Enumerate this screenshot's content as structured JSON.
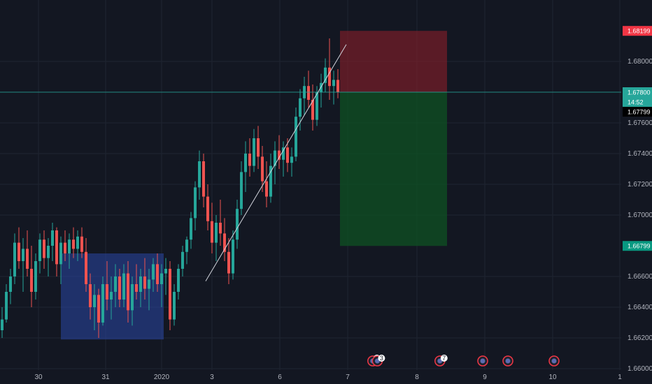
{
  "chart_data": {
    "type": "candlestick",
    "instrument_interval": "",
    "y_axis": {
      "ticks": [
        "1.68000",
        "1.67600",
        "1.67400",
        "1.67200",
        "1.67000",
        "1.66600",
        "1.66400",
        "1.66200",
        "1.66000"
      ],
      "ylim": [
        1.6596,
        1.6836
      ]
    },
    "x_axis": {
      "ticks": [
        "30",
        "31",
        "2020",
        "3",
        "6",
        "7",
        "8",
        "9",
        "10",
        "1"
      ]
    },
    "price_labels": {
      "stop": {
        "text": "1.68199",
        "value": 1.68199,
        "color": "#f23645"
      },
      "entry": {
        "text": "1.67800",
        "value": 1.678,
        "color": "#26a69a"
      },
      "countdown": {
        "text": "14:52",
        "color": "#26a69a"
      },
      "last": {
        "text": "1.67799",
        "value": 1.67799,
        "color": "#000000"
      },
      "target": {
        "text": "1.66799",
        "value": 1.66799,
        "color": "#089981"
      }
    },
    "colors": {
      "up": "#26a69a",
      "down": "#ef5350",
      "grid": "#1f2431",
      "axis_text": "#b2b5be",
      "zone_box": "#2947a5",
      "risk": "#8b1e2a",
      "reward": "#0f5223",
      "trendline": "#d1d4dc"
    },
    "candles": [
      [
        1.6625,
        1.664,
        1.662,
        1.6632
      ],
      [
        1.6632,
        1.6655,
        1.663,
        1.665
      ],
      [
        1.665,
        1.6665,
        1.6642,
        1.666
      ],
      [
        1.666,
        1.6688,
        1.6655,
        1.6682
      ],
      [
        1.6682,
        1.6692,
        1.6665,
        1.667
      ],
      [
        1.667,
        1.6685,
        1.665,
        1.6678
      ],
      [
        1.6678,
        1.669,
        1.666,
        1.6665
      ],
      [
        1.6665,
        1.668,
        1.664,
        1.665
      ],
      [
        1.665,
        1.6675,
        1.6645,
        1.667
      ],
      [
        1.667,
        1.6688,
        1.6662,
        1.6684
      ],
      [
        1.6684,
        1.669,
        1.6665,
        1.6672
      ],
      [
        1.6672,
        1.6685,
        1.666,
        1.668
      ],
      [
        1.668,
        1.6695,
        1.667,
        1.669
      ],
      [
        1.669,
        1.6692,
        1.666,
        1.6668
      ],
      [
        1.6668,
        1.6686,
        1.6655,
        1.6682
      ],
      [
        1.6682,
        1.669,
        1.667,
        1.6675
      ],
      [
        1.6675,
        1.6688,
        1.6665,
        1.6684
      ],
      [
        1.6684,
        1.6692,
        1.6672,
        1.6678
      ],
      [
        1.6678,
        1.669,
        1.667,
        1.6686
      ],
      [
        1.6686,
        1.6692,
        1.6672,
        1.6676
      ],
      [
        1.6676,
        1.6685,
        1.665,
        1.6655
      ],
      [
        1.6655,
        1.6662,
        1.6632,
        1.664
      ],
      [
        1.664,
        1.6655,
        1.6625,
        1.6648
      ],
      [
        1.6648,
        1.6652,
        1.662,
        1.663
      ],
      [
        1.663,
        1.666,
        1.6628,
        1.6655
      ],
      [
        1.6655,
        1.667,
        1.6638,
        1.6645
      ],
      [
        1.6645,
        1.666,
        1.6632,
        1.665
      ],
      [
        1.665,
        1.6668,
        1.664,
        1.666
      ],
      [
        1.666,
        1.6665,
        1.664,
        1.6645
      ],
      [
        1.6645,
        1.6668,
        1.664,
        1.6662
      ],
      [
        1.6662,
        1.667,
        1.663,
        1.6638
      ],
      [
        1.6638,
        1.666,
        1.6628,
        1.6655
      ],
      [
        1.6655,
        1.6668,
        1.6645,
        1.665
      ],
      [
        1.665,
        1.6665,
        1.664,
        1.666
      ],
      [
        1.666,
        1.6672,
        1.6645,
        1.6652
      ],
      [
        1.6652,
        1.6665,
        1.6638,
        1.6658
      ],
      [
        1.6658,
        1.6672,
        1.665,
        1.6668
      ],
      [
        1.6668,
        1.6675,
        1.665,
        1.6655
      ],
      [
        1.6655,
        1.6668,
        1.664,
        1.6662
      ],
      [
        1.6662,
        1.6672,
        1.6648,
        1.6665
      ],
      [
        1.6665,
        1.667,
        1.6625,
        1.6632
      ],
      [
        1.6632,
        1.6655,
        1.6628,
        1.665
      ],
      [
        1.665,
        1.6668,
        1.6645,
        1.6665
      ],
      [
        1.6665,
        1.668,
        1.666,
        1.6676
      ],
      [
        1.6676,
        1.6686,
        1.6668,
        1.6684
      ],
      [
        1.6684,
        1.6702,
        1.6678,
        1.6698
      ],
      [
        1.6698,
        1.6722,
        1.669,
        1.6718
      ],
      [
        1.6718,
        1.6742,
        1.671,
        1.6735
      ],
      [
        1.6735,
        1.674,
        1.6705,
        1.6712
      ],
      [
        1.6712,
        1.672,
        1.669,
        1.6696
      ],
      [
        1.6696,
        1.6708,
        1.6675,
        1.6682
      ],
      [
        1.6682,
        1.67,
        1.667,
        1.6695
      ],
      [
        1.6695,
        1.671,
        1.668,
        1.6688
      ],
      [
        1.6688,
        1.6698,
        1.667,
        1.6676
      ],
      [
        1.6676,
        1.6685,
        1.6655,
        1.6662
      ],
      [
        1.6662,
        1.669,
        1.6658,
        1.6684
      ],
      [
        1.6684,
        1.671,
        1.6678,
        1.6704
      ],
      [
        1.6704,
        1.6735,
        1.67,
        1.6728
      ],
      [
        1.6728,
        1.6748,
        1.6715,
        1.674
      ],
      [
        1.674,
        1.675,
        1.6725,
        1.6732
      ],
      [
        1.6732,
        1.6756,
        1.6728,
        1.675
      ],
      [
        1.675,
        1.6758,
        1.673,
        1.6738
      ],
      [
        1.6738,
        1.6745,
        1.6715,
        1.6722
      ],
      [
        1.6722,
        1.6735,
        1.6705,
        1.6712
      ],
      [
        1.6712,
        1.674,
        1.6708,
        1.6732
      ],
      [
        1.6732,
        1.6748,
        1.672,
        1.6742
      ],
      [
        1.6742,
        1.6752,
        1.673,
        1.6736
      ],
      [
        1.6736,
        1.6748,
        1.6725,
        1.6744
      ],
      [
        1.6744,
        1.675,
        1.6728,
        1.6734
      ],
      [
        1.6734,
        1.6744,
        1.6725,
        1.6738
      ],
      [
        1.6738,
        1.677,
        1.6735,
        1.6764
      ],
      [
        1.6764,
        1.6782,
        1.6755,
        1.6776
      ],
      [
        1.6776,
        1.679,
        1.6765,
        1.6784
      ],
      [
        1.6784,
        1.6794,
        1.677,
        1.6775
      ],
      [
        1.6775,
        1.6785,
        1.6755,
        1.6762
      ],
      [
        1.6762,
        1.6784,
        1.6758,
        1.678
      ],
      [
        1.678,
        1.6792,
        1.677,
        1.6786
      ],
      [
        1.6786,
        1.6802,
        1.678,
        1.6796
      ],
      [
        1.6796,
        1.6815,
        1.6775,
        1.6784
      ],
      [
        1.6784,
        1.6794,
        1.6772,
        1.6788
      ],
      [
        1.6788,
        1.6795,
        1.6776,
        1.678
      ]
    ],
    "trendline": {
      "from": [
        48.5,
        1.6657
      ],
      "to": [
        82.0,
        1.6811
      ]
    },
    "blue_zone": {
      "x": [
        14.0,
        38.5
      ],
      "y": [
        1.6619,
        1.6675
      ]
    },
    "position": {
      "x": [
        80.5,
        106.0
      ],
      "entry": 1.678,
      "stop": 1.68199,
      "target": 1.66799
    },
    "event_markers": [
      {
        "x": 88.3,
        "badge": "7"
      },
      {
        "x": 89.4,
        "badge": "3"
      },
      {
        "x": 104.3,
        "badge": "7"
      },
      {
        "x": 114.5,
        "badge": ""
      },
      {
        "x": 120.5,
        "badge": ""
      },
      {
        "x": 131.5,
        "badge": ""
      }
    ]
  }
}
